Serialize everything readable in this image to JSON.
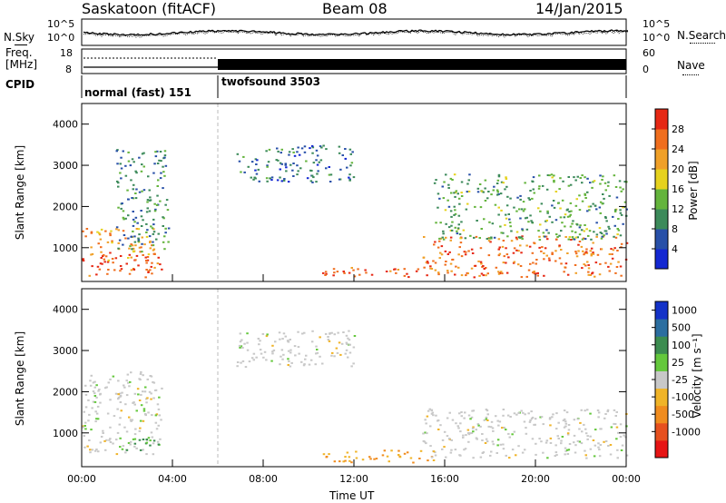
{
  "header": {
    "station": "Saskatoon (fitACF)",
    "beam": "Beam 08",
    "date": "14/Jan/2015"
  },
  "strip_labels": {
    "nsky": "N.Sky",
    "nsearch": "N.Search",
    "freq_line1": "Freq.",
    "freq_line2": "[MHz]",
    "nave": "Nave",
    "cpid": "CPID"
  },
  "strip_ticks": {
    "noise_left": [
      "10^5",
      "10^0"
    ],
    "noise_right": [
      "10^5",
      "10^0"
    ],
    "freq_left": [
      "18",
      "8"
    ],
    "freq_right": [
      "60",
      "0"
    ]
  },
  "cpid_segments": [
    {
      "label": "normal (fast) 151",
      "start_hour": 0,
      "end_hour": 6
    },
    {
      "label": "twofsound 3503",
      "start_hour": 6,
      "end_hour": 24
    }
  ],
  "axes": {
    "xlabel": "Time UT",
    "ylabel": "Slant Range [km]",
    "x_ticks": [
      "00:00",
      "04:00",
      "08:00",
      "12:00",
      "16:00",
      "20:00",
      "00:00"
    ],
    "x_range_hours": [
      0,
      24
    ],
    "y_ticks": [
      "1000",
      "2000",
      "3000",
      "4000"
    ],
    "y_range_km": [
      180,
      4500
    ]
  },
  "colorbars": {
    "power": {
      "label": "Power [dB]",
      "ticks": [
        "28",
        "24",
        "20",
        "16",
        "12",
        "8",
        "4"
      ],
      "colors": [
        "#1428d2",
        "#2850a8",
        "#3c8a5a",
        "#64b43c",
        "#e6d21e",
        "#f0a028",
        "#f06e1e",
        "#e62814"
      ]
    },
    "velocity": {
      "label": "Velocity [m s⁻¹]",
      "ticks": [
        "1000",
        "500",
        "100",
        "25",
        "-25",
        "-100",
        "-500",
        "-1000"
      ],
      "colors": [
        "#1432c8",
        "#2c6ea0",
        "#3c8c50",
        "#64c83c",
        "#c8c8c8",
        "#f0b428",
        "#f08c1e",
        "#e6501e",
        "#e61414"
      ]
    }
  },
  "chart_data": [
    {
      "type": "heatmap",
      "title": "Power [dB]",
      "xlabel": "Time UT",
      "ylabel": "Slant Range [km]",
      "xlim_hours": [
        0,
        24
      ],
      "ylim_km": [
        180,
        4500
      ],
      "scatter_features": [
        {
          "start_hour": 0.0,
          "end_hour": 3.5,
          "range_low_km": 300,
          "range_high_km": 900,
          "value_db": 28
        },
        {
          "start_hour": 0.0,
          "end_hour": 3.2,
          "range_low_km": 700,
          "range_high_km": 1500,
          "value_db": 22
        },
        {
          "start_hour": 1.5,
          "end_hour": 3.8,
          "range_low_km": 900,
          "range_high_km": 3400,
          "value_db": 10
        },
        {
          "start_hour": 10.5,
          "end_hour": 15.5,
          "range_low_km": 300,
          "range_high_km": 550,
          "value_db": 28
        },
        {
          "start_hour": 15.0,
          "end_hour": 24.0,
          "range_low_km": 300,
          "range_high_km": 1300,
          "value_db": 26
        },
        {
          "start_hour": 15.5,
          "end_hour": 24.0,
          "range_low_km": 1200,
          "range_high_km": 2800,
          "value_db": 12
        },
        {
          "start_hour": 6.8,
          "end_hour": 12.0,
          "range_low_km": 2600,
          "range_high_km": 3500,
          "value_db": 8
        }
      ]
    },
    {
      "type": "heatmap",
      "title": "Velocity [m s⁻¹]",
      "xlabel": "Time UT",
      "ylabel": "Slant Range [km]",
      "xlim_hours": [
        0,
        24
      ],
      "ylim_km": [
        180,
        4500
      ],
      "scatter_features": [
        {
          "start_hour": 0.0,
          "end_hour": 3.5,
          "range_low_km": 500,
          "range_high_km": 2500,
          "value_ms": 0
        },
        {
          "start_hour": 1.5,
          "end_hour": 3.5,
          "range_low_km": 600,
          "range_high_km": 950,
          "value_ms": 100
        },
        {
          "start_hour": 10.5,
          "end_hour": 15.5,
          "range_low_km": 300,
          "range_high_km": 600,
          "value_ms": -100
        },
        {
          "start_hour": 15.0,
          "end_hour": 24.0,
          "range_low_km": 400,
          "range_high_km": 1600,
          "value_ms": 0
        },
        {
          "start_hour": 6.8,
          "end_hour": 12.0,
          "range_low_km": 2600,
          "range_high_km": 3500,
          "value_ms": 0
        }
      ]
    }
  ]
}
